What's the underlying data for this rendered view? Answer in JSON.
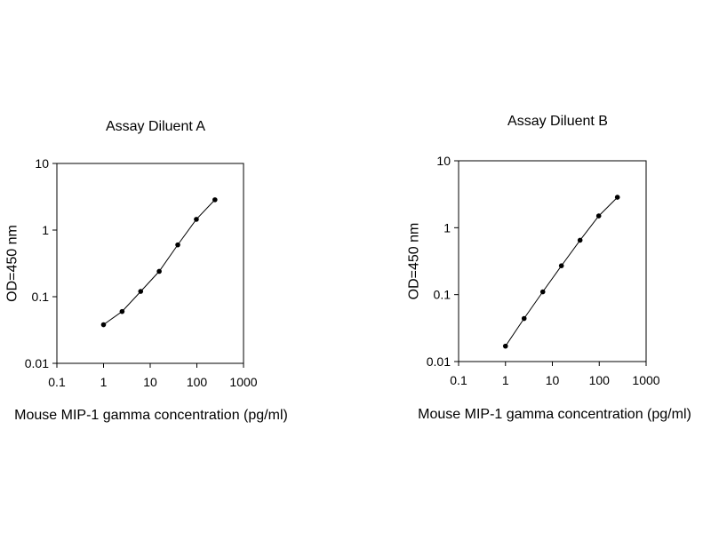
{
  "colors": {
    "background": "#ffffff",
    "ink": "#000000"
  },
  "chart_data": [
    {
      "type": "line",
      "title": "Assay Diluent A",
      "xlabel": "Mouse MIP-1 gamma concentration (pg/ml)",
      "ylabel": "OD=450 nm",
      "xscale": "log",
      "yscale": "log",
      "xlim": [
        0.1,
        1000
      ],
      "ylim": [
        0.01,
        10
      ],
      "xticks": [
        "0.1",
        "1",
        "10",
        "100",
        "1000"
      ],
      "yticks": [
        "0.01",
        "0.1",
        "1",
        "10"
      ],
      "grid": false,
      "legend": "none",
      "markers": "filled-circle",
      "x": [
        1,
        2.5,
        6.25,
        15.6,
        39,
        97.6,
        244
      ],
      "y": [
        0.038,
        0.06,
        0.12,
        0.24,
        0.6,
        1.45,
        2.85
      ]
    },
    {
      "type": "line",
      "title": "Assay Diluent B",
      "xlabel": "Mouse MIP-1 gamma concentration (pg/ml)",
      "ylabel": "OD=450 nm",
      "xscale": "log",
      "yscale": "log",
      "xlim": [
        0.1,
        1000
      ],
      "ylim": [
        0.01,
        10
      ],
      "xticks": [
        "0.1",
        "1",
        "10",
        "100",
        "1000"
      ],
      "yticks": [
        "0.01",
        "0.1",
        "1",
        "10"
      ],
      "grid": false,
      "legend": "none",
      "markers": "filled-circle",
      "x": [
        1,
        2.5,
        6.25,
        15.6,
        39,
        97.6,
        244
      ],
      "y": [
        0.017,
        0.044,
        0.11,
        0.27,
        0.65,
        1.5,
        2.85
      ]
    }
  ]
}
